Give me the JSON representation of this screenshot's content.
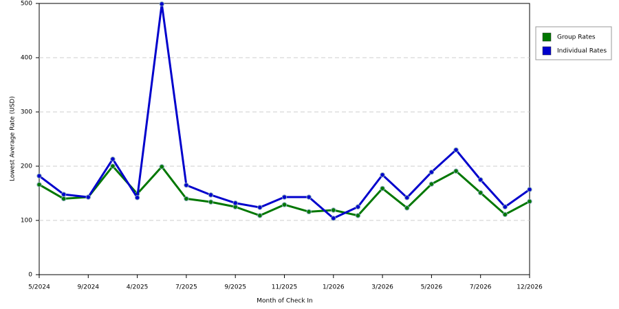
{
  "chart_data": {
    "type": "line",
    "x_label": "Month of Check In",
    "y_label": "Lowest Average Rate (USD)",
    "categories": [
      "5/2024",
      null,
      "9/2024",
      null,
      "4/2025",
      null,
      "7/2025",
      null,
      "9/2025",
      null,
      "11/2025",
      null,
      "1/2026",
      null,
      "3/2026",
      null,
      "5/2026",
      null,
      "7/2026",
      null,
      "12/2026"
    ],
    "series": [
      {
        "name": "Group Rates",
        "color": "#007700",
        "values": [
          166,
          140,
          143,
          200,
          149,
          199,
          140,
          134,
          125,
          109,
          129,
          116,
          119,
          109,
          159,
          123,
          167,
          191,
          151,
          111,
          135
        ]
      },
      {
        "name": "Individual Rates",
        "color": "#0000cc",
        "values": [
          182,
          148,
          143,
          213,
          142,
          499,
          165,
          147,
          132,
          124,
          143,
          143,
          104,
          125,
          184,
          142,
          189,
          230,
          175,
          125,
          157
        ]
      }
    ],
    "ylim": [
      0,
      500
    ],
    "yticks": [
      0,
      100,
      200,
      300,
      400,
      500
    ],
    "grid": true,
    "legend": "right"
  }
}
